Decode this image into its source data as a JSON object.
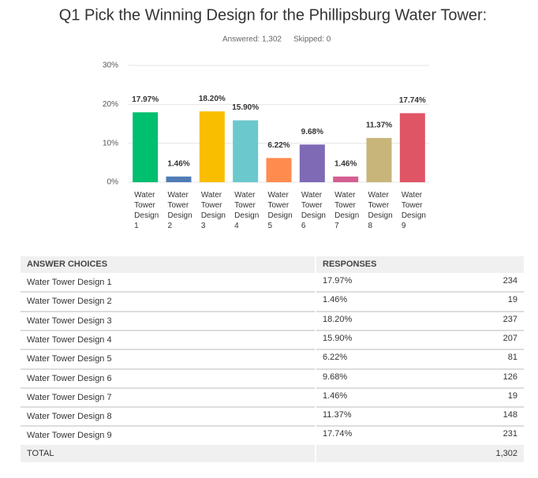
{
  "chart_data": {
    "type": "bar",
    "title": "Q1 Pick the Winning Design for the Phillipsburg Water Tower:",
    "answered": "Answered: 1,302",
    "skipped": "Skipped: 0",
    "categories": [
      "Water Tower Design 1",
      "Water Tower Design 2",
      "Water Tower Design 3",
      "Water Tower Design 4",
      "Water Tower Design 5",
      "Water Tower Design 6",
      "Water Tower Design 7",
      "Water Tower Design 8",
      "Water Tower Design 9"
    ],
    "values": [
      17.97,
      1.46,
      18.2,
      15.9,
      6.22,
      9.68,
      1.46,
      11.37,
      17.74
    ],
    "value_labels": [
      "17.97%",
      "1.46%",
      "18.20%",
      "15.90%",
      "6.22%",
      "9.68%",
      "1.46%",
      "11.37%",
      "17.74%"
    ],
    "colors": [
      "#00bf6f",
      "#507cb6",
      "#f9be00",
      "#6bc8cd",
      "#ff8b4f",
      "#7f6ab6",
      "#d25f90",
      "#c8b57a",
      "#e05565"
    ],
    "ylim": [
      0,
      30
    ],
    "yticks": [
      {
        "value": 0,
        "label": "0%"
      },
      {
        "value": 10,
        "label": "10%"
      },
      {
        "value": 20,
        "label": "20%"
      },
      {
        "value": 30,
        "label": "30%"
      }
    ],
    "grid": true
  },
  "table": {
    "header": [
      "ANSWER CHOICES",
      "RESPONSES"
    ],
    "rows": [
      [
        "Water Tower Design 1",
        "17.97%",
        234
      ],
      [
        "Water Tower Design 2",
        "1.46%",
        19
      ],
      [
        "Water Tower Design 3",
        "18.20%",
        237
      ],
      [
        "Water Tower Design 4",
        "15.90%",
        207
      ],
      [
        "Water Tower Design 5",
        "6.22%",
        81
      ],
      [
        "Water Tower Design 6",
        "9.68%",
        126
      ],
      [
        "Water Tower Design 7",
        "1.46%",
        19
      ],
      [
        "Water Tower Design 8",
        "11.37%",
        148
      ],
      [
        "Water Tower Design 9",
        "17.74%",
        231
      ]
    ],
    "total": [
      "TOTAL",
      "1,302"
    ]
  }
}
